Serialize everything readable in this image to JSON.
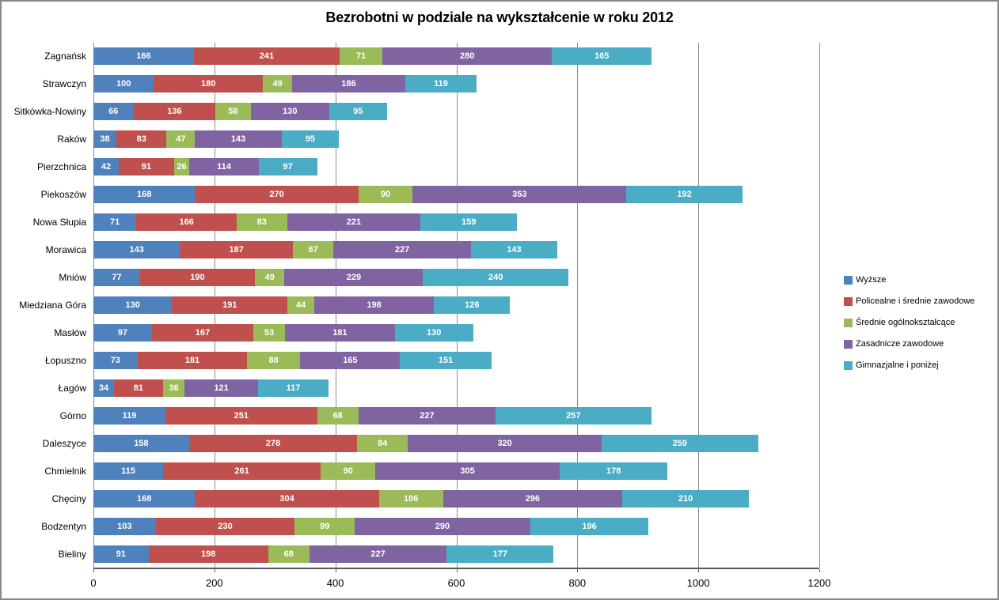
{
  "chart_data": {
    "type": "bar",
    "orientation": "horizontal",
    "stacked": true,
    "title": "Bezrobotni w podziale na wykształcenie w roku 2012",
    "categories": [
      "Zagnańsk",
      "Strawczyn",
      "Sitkówka-Nowiny",
      "Raków",
      "Pierzchnica",
      "Piekoszów",
      "Nowa Słupia",
      "Morawica",
      "Mniów",
      "Miedziana Góra",
      "Masłów",
      "Łopuszno",
      "Łagów",
      "Górno",
      "Daleszyce",
      "Chmielnik",
      "Chęciny",
      "Bodzentyn",
      "Bieliny"
    ],
    "series": [
      {
        "name": "Wyższe",
        "color": "#4F81BD",
        "values": [
          166,
          100,
          66,
          38,
          42,
          168,
          71,
          143,
          77,
          130,
          97,
          73,
          34,
          119,
          158,
          115,
          168,
          103,
          91
        ]
      },
      {
        "name": "Policealne i średnie zawodowe",
        "color": "#C0504D",
        "values": [
          241,
          180,
          136,
          83,
          91,
          270,
          166,
          187,
          190,
          191,
          167,
          181,
          81,
          251,
          278,
          261,
          304,
          230,
          198
        ]
      },
      {
        "name": "Średnie ogólnokształcące",
        "color": "#9BBB59",
        "values": [
          71,
          49,
          58,
          47,
          26,
          90,
          83,
          67,
          49,
          44,
          53,
          88,
          36,
          68,
          84,
          90,
          106,
          99,
          68
        ]
      },
      {
        "name": "Zasadnicze zawodowe",
        "color": "#8064A2",
        "values": [
          280,
          186,
          130,
          143,
          114,
          353,
          221,
          227,
          229,
          198,
          181,
          165,
          121,
          227,
          320,
          305,
          296,
          290,
          227
        ]
      },
      {
        "name": "Gimnazjalne i poniżej",
        "color": "#4BACC6",
        "values": [
          165,
          119,
          95,
          95,
          97,
          192,
          159,
          143,
          240,
          126,
          130,
          151,
          117,
          257,
          259,
          178,
          210,
          196,
          177
        ]
      }
    ],
    "xlim": [
      0,
      1200
    ],
    "xticks": [
      0,
      200,
      400,
      600,
      800,
      1000,
      1200
    ],
    "grid": "vertical-only",
    "legend_position": "right-middle",
    "value_labels": "white-bold-centered-in-segment",
    "colors": {
      "grid": "#8C8C8C",
      "axis": "#595959",
      "figure_border": "#898989",
      "value_label_text": "#FFFFFF",
      "axis_text": "#000000"
    }
  }
}
